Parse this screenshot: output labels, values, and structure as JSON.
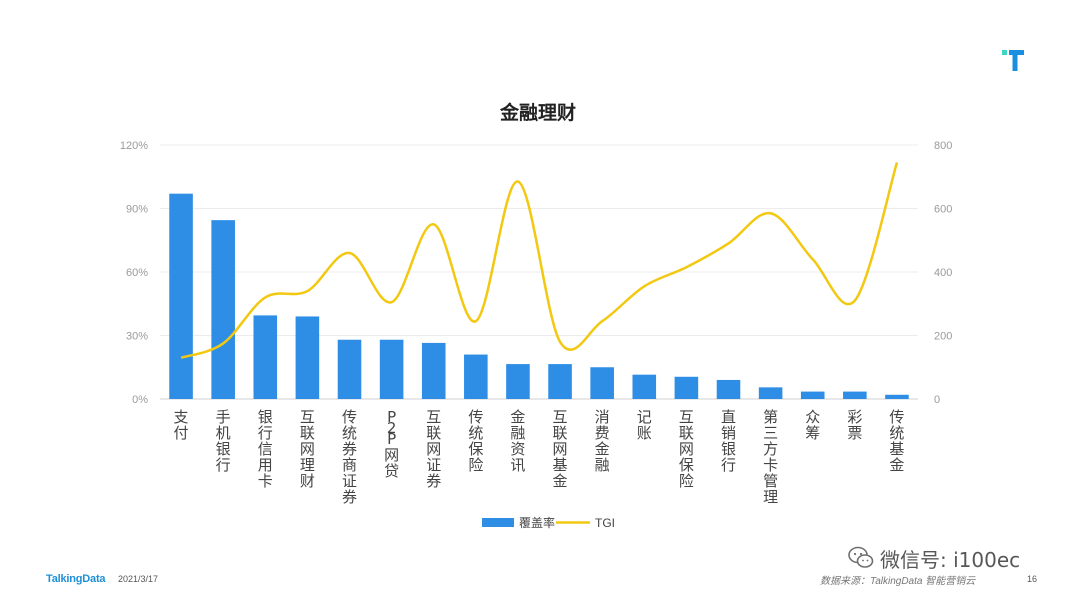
{
  "slide": {
    "footer_logo": "TalkingData",
    "footer_date": "2021/3/17",
    "footer_source": "数据来源：TalkingData 智能营销云",
    "page_number": "16",
    "watermark_text": "微信号: i100ec",
    "brand_icon": "talkingdata-t-icon",
    "watermark_icon": "wechat-icon"
  },
  "chart_data": {
    "type": "bar",
    "title": "金融理财",
    "categories": [
      "支付",
      "手机银行",
      "银行信用卡",
      "互联网理财",
      "传统券商证券",
      "P2P网贷",
      "互联网证券",
      "传统保险",
      "金融资讯",
      "互联网基金",
      "消费金融",
      "记账",
      "互联网保险",
      "直销银行",
      "第三方卡管理",
      "众筹",
      "彩票",
      "传统基金"
    ],
    "series": [
      {
        "name": "覆盖率",
        "type": "bar",
        "axis": "left",
        "color": "#2e8ee6",
        "values": [
          97,
          84.5,
          39.5,
          39,
          28,
          28,
          26.5,
          21,
          16.5,
          16.5,
          15,
          11.5,
          10.5,
          9,
          5.5,
          3.5,
          3.5,
          2
        ]
      },
      {
        "name": "TGI",
        "type": "line",
        "axis": "right",
        "color": "#f2c811",
        "values": [
          130,
          175,
          320,
          340,
          460,
          305,
          550,
          245,
          685,
          180,
          245,
          355,
          415,
          490,
          585,
          440,
          310,
          745
        ]
      }
    ],
    "y_left": {
      "min": 0,
      "max": 120,
      "ticks": [
        "0%",
        "30%",
        "60%",
        "90%",
        "120%"
      ]
    },
    "y_right": {
      "min": 0,
      "max": 800,
      "ticks": [
        "0",
        "200",
        "400",
        "600",
        "800"
      ]
    },
    "grid": true,
    "legend_position": "bottom"
  }
}
